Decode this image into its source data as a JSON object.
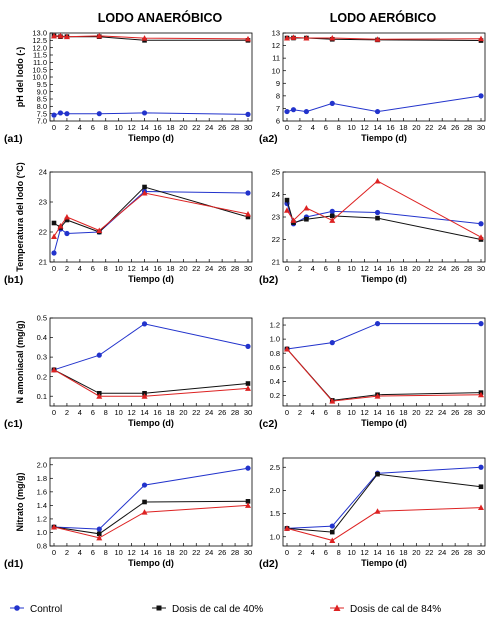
{
  "titles": [
    "LODO ANAERÓBICO",
    "LODO AERÓBICO"
  ],
  "legend": [
    {
      "label": "Control",
      "color": "#2233cc",
      "marker": "circle"
    },
    {
      "label": "Dosis de cal de 40%",
      "color": "#111111",
      "marker": "square"
    },
    {
      "label": "Dosis de cal de 84%",
      "color": "#dd2222",
      "marker": "triangle"
    }
  ],
  "chart_data": [
    {
      "id": "a1",
      "panel_label": "(a1)",
      "type": "line",
      "xlabel": "Tiempo (d)",
      "ylabel": "pH del lodo (-)",
      "xlim": [
        0,
        30
      ],
      "ylim": [
        7,
        13
      ],
      "xticks": [
        0,
        2,
        4,
        6,
        8,
        10,
        12,
        14,
        16,
        18,
        20,
        22,
        24,
        26,
        28,
        30
      ],
      "yticks": [
        7,
        7.5,
        8,
        8.5,
        9,
        9.5,
        10,
        10.5,
        11,
        11.5,
        12,
        12.5,
        13
      ],
      "series": [
        {
          "color": "#2233cc",
          "marker": "circle",
          "x": [
            0,
            1,
            2,
            7,
            14,
            30
          ],
          "y": [
            7.4,
            7.55,
            7.5,
            7.5,
            7.55,
            7.45
          ]
        },
        {
          "color": "#111111",
          "marker": "square",
          "x": [
            0,
            1,
            2,
            7,
            14,
            30
          ],
          "y": [
            12.8,
            12.75,
            12.75,
            12.75,
            12.5,
            12.5
          ]
        },
        {
          "color": "#dd2222",
          "marker": "triangle",
          "x": [
            0,
            1,
            2,
            7,
            14,
            30
          ],
          "y": [
            12.8,
            12.8,
            12.75,
            12.8,
            12.65,
            12.6
          ]
        }
      ]
    },
    {
      "id": "a2",
      "panel_label": "(a2)",
      "type": "line",
      "xlabel": "Tiempo (d)",
      "ylabel": "",
      "xlim": [
        0,
        30
      ],
      "ylim": [
        6,
        13
      ],
      "xticks": [
        0,
        2,
        4,
        6,
        8,
        10,
        12,
        14,
        16,
        18,
        20,
        22,
        24,
        26,
        28,
        30
      ],
      "yticks": [
        6,
        7,
        8,
        9,
        10,
        11,
        12,
        13
      ],
      "series": [
        {
          "color": "#2233cc",
          "marker": "circle",
          "x": [
            0,
            1,
            3,
            7,
            14,
            30
          ],
          "y": [
            6.75,
            6.9,
            6.75,
            7.4,
            6.75,
            8.0
          ]
        },
        {
          "color": "#111111",
          "marker": "square",
          "x": [
            0,
            1,
            3,
            7,
            14,
            30
          ],
          "y": [
            12.6,
            12.6,
            12.6,
            12.5,
            12.45,
            12.4
          ]
        },
        {
          "color": "#dd2222",
          "marker": "triangle",
          "x": [
            0,
            1,
            3,
            7,
            14,
            30
          ],
          "y": [
            12.6,
            12.65,
            12.6,
            12.6,
            12.5,
            12.55
          ]
        }
      ]
    },
    {
      "id": "b1",
      "panel_label": "(b1)",
      "type": "line",
      "xlabel": "Tiempo (d)",
      "ylabel": "Temperatura del lodo (°C)",
      "xlim": [
        0,
        30
      ],
      "ylim": [
        21,
        24
      ],
      "xticks": [
        0,
        2,
        4,
        6,
        8,
        10,
        12,
        14,
        16,
        18,
        20,
        22,
        24,
        26,
        28,
        30
      ],
      "yticks": [
        21,
        22,
        23,
        24
      ],
      "series": [
        {
          "color": "#2233cc",
          "marker": "circle",
          "x": [
            0,
            1,
            2,
            7,
            14,
            30
          ],
          "y": [
            21.3,
            22.1,
            21.95,
            22.0,
            23.35,
            23.3
          ]
        },
        {
          "color": "#111111",
          "marker": "square",
          "x": [
            0,
            1,
            2,
            7,
            14,
            30
          ],
          "y": [
            22.3,
            22.15,
            22.4,
            22.0,
            23.5,
            22.5
          ]
        },
        {
          "color": "#dd2222",
          "marker": "triangle",
          "x": [
            0,
            1,
            2,
            7,
            14,
            30
          ],
          "y": [
            21.85,
            22.2,
            22.5,
            22.05,
            23.3,
            22.6
          ]
        }
      ]
    },
    {
      "id": "b2",
      "panel_label": "(b2)",
      "type": "line",
      "xlabel": "Tiempo (d)",
      "ylabel": "",
      "xlim": [
        0,
        30
      ],
      "ylim": [
        21,
        25
      ],
      "xticks": [
        0,
        2,
        4,
        6,
        8,
        10,
        12,
        14,
        16,
        18,
        20,
        22,
        24,
        26,
        28,
        30
      ],
      "yticks": [
        21,
        22,
        23,
        24,
        25
      ],
      "series": [
        {
          "color": "#2233cc",
          "marker": "circle",
          "x": [
            0,
            1,
            3,
            7,
            14,
            30
          ],
          "y": [
            23.6,
            22.7,
            23.0,
            23.25,
            23.2,
            22.7
          ]
        },
        {
          "color": "#111111",
          "marker": "square",
          "x": [
            0,
            1,
            3,
            7,
            14,
            30
          ],
          "y": [
            23.75,
            22.75,
            22.9,
            23.05,
            22.95,
            22.0
          ]
        },
        {
          "color": "#dd2222",
          "marker": "triangle",
          "x": [
            0,
            1,
            3,
            7,
            14,
            30
          ],
          "y": [
            23.3,
            22.85,
            23.4,
            22.85,
            24.6,
            22.1
          ]
        }
      ]
    },
    {
      "id": "c1",
      "panel_label": "(c1)",
      "type": "line",
      "xlabel": "Tiempo (d)",
      "ylabel": "N amoniacal (mg/g)",
      "xlim": [
        0,
        30
      ],
      "ylim": [
        0.05,
        0.5
      ],
      "xticks": [
        0,
        2,
        4,
        6,
        8,
        10,
        12,
        14,
        16,
        18,
        20,
        22,
        24,
        26,
        28,
        30
      ],
      "yticks": [
        0.1,
        0.2,
        0.3,
        0.4,
        0.5
      ],
      "series": [
        {
          "color": "#2233cc",
          "marker": "circle",
          "x": [
            0,
            7,
            14,
            30
          ],
          "y": [
            0.235,
            0.31,
            0.47,
            0.355
          ]
        },
        {
          "color": "#111111",
          "marker": "square",
          "x": [
            0,
            7,
            14,
            30
          ],
          "y": [
            0.235,
            0.115,
            0.115,
            0.165
          ]
        },
        {
          "color": "#dd2222",
          "marker": "triangle",
          "x": [
            0,
            7,
            14,
            30
          ],
          "y": [
            0.235,
            0.1,
            0.1,
            0.14
          ]
        }
      ]
    },
    {
      "id": "c2",
      "panel_label": "(c2)",
      "type": "line",
      "xlabel": "Tiempo (d)",
      "ylabel": "",
      "xlim": [
        0,
        30
      ],
      "ylim": [
        0.05,
        1.3
      ],
      "xticks": [
        0,
        2,
        4,
        6,
        8,
        10,
        12,
        14,
        16,
        18,
        20,
        22,
        24,
        26,
        28,
        30
      ],
      "yticks": [
        0.2,
        0.4,
        0.6,
        0.8,
        1.0,
        1.2
      ],
      "series": [
        {
          "color": "#2233cc",
          "marker": "circle",
          "x": [
            0,
            7,
            14,
            30
          ],
          "y": [
            0.86,
            0.95,
            1.22,
            1.22
          ]
        },
        {
          "color": "#111111",
          "marker": "square",
          "x": [
            0,
            7,
            14,
            30
          ],
          "y": [
            0.86,
            0.13,
            0.21,
            0.24
          ]
        },
        {
          "color": "#dd2222",
          "marker": "triangle",
          "x": [
            0,
            7,
            14,
            30
          ],
          "y": [
            0.86,
            0.12,
            0.19,
            0.21
          ]
        }
      ]
    },
    {
      "id": "d1",
      "panel_label": "(d1)",
      "type": "line",
      "xlabel": "Tiempo (d)",
      "ylabel": "Nitrato (mg/g)",
      "xlim": [
        0,
        30
      ],
      "ylim": [
        0.8,
        2.1
      ],
      "xticks": [
        0,
        2,
        4,
        6,
        8,
        10,
        12,
        14,
        16,
        18,
        20,
        22,
        24,
        26,
        28,
        30
      ],
      "yticks": [
        0.8,
        1.0,
        1.2,
        1.4,
        1.6,
        1.8,
        2.0
      ],
      "series": [
        {
          "color": "#2233cc",
          "marker": "circle",
          "x": [
            0,
            7,
            14,
            30
          ],
          "y": [
            1.08,
            1.05,
            1.7,
            1.95
          ]
        },
        {
          "color": "#111111",
          "marker": "square",
          "x": [
            0,
            7,
            14,
            30
          ],
          "y": [
            1.08,
            0.98,
            1.45,
            1.46
          ]
        },
        {
          "color": "#dd2222",
          "marker": "triangle",
          "x": [
            0,
            7,
            14,
            30
          ],
          "y": [
            1.08,
            0.92,
            1.3,
            1.4
          ]
        }
      ]
    },
    {
      "id": "d2",
      "panel_label": "(d2)",
      "type": "line",
      "xlabel": "Tiempo (d)",
      "ylabel": "",
      "xlim": [
        0,
        30
      ],
      "ylim": [
        0.8,
        2.7
      ],
      "xticks": [
        0,
        2,
        4,
        6,
        8,
        10,
        12,
        14,
        16,
        18,
        20,
        22,
        24,
        26,
        28,
        30
      ],
      "yticks": [
        1.0,
        1.5,
        2.0,
        2.5
      ],
      "series": [
        {
          "color": "#2233cc",
          "marker": "circle",
          "x": [
            0,
            7,
            14,
            30
          ],
          "y": [
            1.18,
            1.23,
            2.37,
            2.5
          ]
        },
        {
          "color": "#111111",
          "marker": "square",
          "x": [
            0,
            7,
            14,
            30
          ],
          "y": [
            1.18,
            1.1,
            2.35,
            2.08
          ]
        },
        {
          "color": "#dd2222",
          "marker": "triangle",
          "x": [
            0,
            7,
            14,
            30
          ],
          "y": [
            1.18,
            0.92,
            1.55,
            1.63
          ]
        }
      ]
    }
  ]
}
